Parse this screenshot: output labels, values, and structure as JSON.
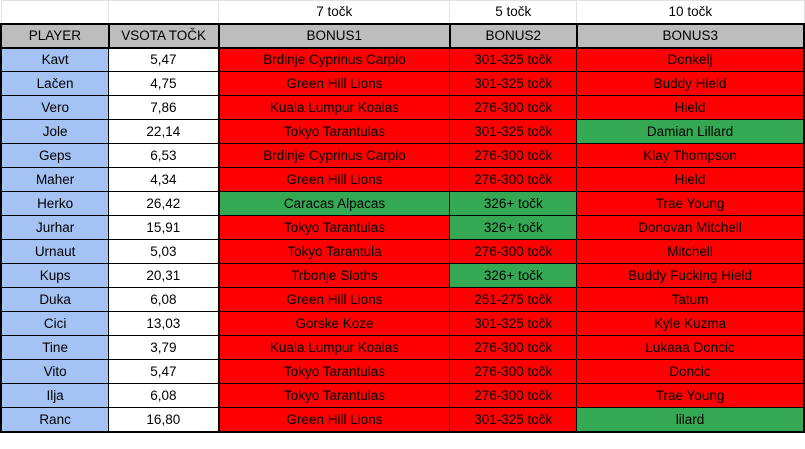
{
  "points_row": {
    "bonus1": "7 točk",
    "bonus2": "5 točk",
    "bonus3": "10 točk"
  },
  "headers": {
    "player": "PLAYER",
    "total": "VSOTA TOČK",
    "bonus1": "BONUS1",
    "bonus2": "BONUS2",
    "bonus3": "BONUS3"
  },
  "colors": {
    "header_bg": "#bdbdbd",
    "player_bg": "#a4c2f4",
    "wrong": "#ff0000",
    "correct": "#34a853"
  },
  "rows": [
    {
      "player": "Kavt",
      "total": "5,47",
      "bonus1": "Brdinje Cyprinus Carpio",
      "bonus1_status": "red",
      "bonus2": "301-325 točk",
      "bonus2_status": "red",
      "bonus3": "Donkelj",
      "bonus3_status": "red"
    },
    {
      "player": "Lačen",
      "total": "4,75",
      "bonus1": "Green Hill Lions",
      "bonus1_status": "red",
      "bonus2": "301-325 točk",
      "bonus2_status": "red",
      "bonus3": "Buddy Hield",
      "bonus3_status": "red"
    },
    {
      "player": "Vero",
      "total": "7,86",
      "bonus1": "Kuala Lumpur Koalas",
      "bonus1_status": "red",
      "bonus2": "276-300 točk",
      "bonus2_status": "red",
      "bonus3": "Hield",
      "bonus3_status": "red"
    },
    {
      "player": "Jole",
      "total": "22,14",
      "bonus1": "Tokyo Tarantulas",
      "bonus1_status": "red",
      "bonus2": "301-325 točk",
      "bonus2_status": "red",
      "bonus3": "Damian Lillard",
      "bonus3_status": "green"
    },
    {
      "player": "Geps",
      "total": "6,53",
      "bonus1": "Brdinje Cyprinus Carpio",
      "bonus1_status": "red",
      "bonus2": "276-300 točk",
      "bonus2_status": "red",
      "bonus3": "Klay Thompson",
      "bonus3_status": "red"
    },
    {
      "player": "Maher",
      "total": "4,34",
      "bonus1": "Green Hill Lions",
      "bonus1_status": "red",
      "bonus2": "276-300 točk",
      "bonus2_status": "red",
      "bonus3": "Hield",
      "bonus3_status": "red"
    },
    {
      "player": "Herko",
      "total": "26,42",
      "bonus1": "Caracas Alpacas",
      "bonus1_status": "green",
      "bonus2": "326+ točk",
      "bonus2_status": "green",
      "bonus3": "Trae Young",
      "bonus3_status": "red"
    },
    {
      "player": "Jurhar",
      "total": "15,91",
      "bonus1": "Tokyo Tarantulas",
      "bonus1_status": "red",
      "bonus2": "326+ točk",
      "bonus2_status": "green",
      "bonus3": "Donovan Mitchell",
      "bonus3_status": "red"
    },
    {
      "player": "Urnaut",
      "total": "5,03",
      "bonus1": "Tokyo Tarantula",
      "bonus1_status": "red",
      "bonus2": "276-300 točk",
      "bonus2_status": "red",
      "bonus3": "Mitchell",
      "bonus3_status": "red"
    },
    {
      "player": "Kups",
      "total": "20,31",
      "bonus1": "Trbonje Sloths",
      "bonus1_status": "red",
      "bonus2": "326+ točk",
      "bonus2_status": "green",
      "bonus3": "Buddy Fucking Hield",
      "bonus3_status": "red"
    },
    {
      "player": "Duka",
      "total": "6,08",
      "bonus1": "Green Hill Lions",
      "bonus1_status": "red",
      "bonus2": "251-275 točk",
      "bonus2_status": "red",
      "bonus3": "Tatum",
      "bonus3_status": "red"
    },
    {
      "player": "Cici",
      "total": "13,03",
      "bonus1": "Gorske Koze",
      "bonus1_status": "red",
      "bonus2": "301-325 točk",
      "bonus2_status": "red",
      "bonus3": "Kyle Kuzma",
      "bonus3_status": "red"
    },
    {
      "player": "Tine",
      "total": "3,79",
      "bonus1": "Kuala Lumpur Koalas",
      "bonus1_status": "red",
      "bonus2": "276-300 točk",
      "bonus2_status": "red",
      "bonus3": "Lukaaa Doncic",
      "bonus3_status": "red"
    },
    {
      "player": "Vito",
      "total": "5,47",
      "bonus1": "Tokyo Tarantulas",
      "bonus1_status": "red",
      "bonus2": "276-300 točk",
      "bonus2_status": "red",
      "bonus3": "Doncic",
      "bonus3_status": "red"
    },
    {
      "player": "Ilja",
      "total": "6,08",
      "bonus1": "Tokyo Tarantulas",
      "bonus1_status": "red",
      "bonus2": "276-300 točk",
      "bonus2_status": "red",
      "bonus3": "Trae Young",
      "bonus3_status": "red"
    },
    {
      "player": "Ranc",
      "total": "16,80",
      "bonus1": "Green Hill Lions",
      "bonus1_status": "red",
      "bonus2": "301-325 točk",
      "bonus2_status": "red",
      "bonus3": "lilard",
      "bonus3_status": "green"
    }
  ]
}
